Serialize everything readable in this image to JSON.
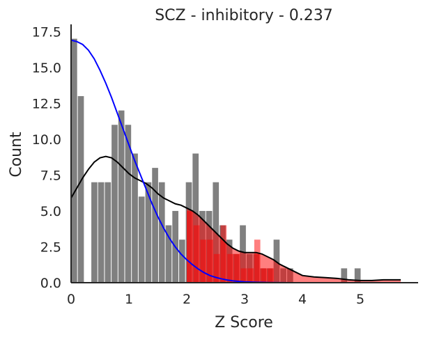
{
  "chart_data": {
    "type": "bar",
    "title": "SCZ - inhibitory - 0.237",
    "xlabel": "Z Score",
    "ylabel": "Count",
    "xlim": [
      0,
      6
    ],
    "ylim": [
      0,
      18
    ],
    "xticks": [
      "0",
      "1",
      "2",
      "3",
      "4",
      "5"
    ],
    "yticks": [
      "0.0",
      "2.5",
      "5.0",
      "7.5",
      "10.0",
      "12.5",
      "15.0",
      "17.5"
    ],
    "bin_start": 0,
    "bin_width": 0.1167,
    "bar_color": "#808080",
    "counts": [
      17,
      13,
      0,
      7,
      7,
      7,
      11,
      12,
      11,
      9,
      6,
      7,
      8,
      7,
      4,
      5,
      3,
      7,
      9,
      5,
      5,
      7,
      4,
      3,
      2,
      4,
      2,
      2,
      1,
      1,
      3,
      1,
      1,
      0,
      0,
      0,
      0,
      0,
      0,
      0,
      1,
      0,
      1,
      0,
      0,
      0,
      0,
      0,
      0,
      0,
      0,
      0,
      0,
      0,
      0,
      0,
      0,
      0,
      0,
      0,
      0,
      0,
      0,
      0,
      0,
      0,
      0,
      0,
      0,
      0,
      0,
      0,
      0,
      0,
      0
    ],
    "highlight": {
      "x_start": 2.0,
      "color": "#ff0000",
      "opacity": 0.5,
      "counts": [
        5,
        4,
        3,
        3,
        2,
        4,
        2,
        2,
        1,
        1,
        3,
        1,
        1
      ]
    },
    "series": [
      {
        "kind": "kde",
        "color": "#000000",
        "x": [
          0,
          0.1,
          0.2,
          0.3,
          0.4,
          0.5,
          0.6,
          0.7,
          0.8,
          0.9,
          1.0,
          1.1,
          1.2,
          1.3,
          1.4,
          1.5,
          1.6,
          1.7,
          1.8,
          1.9,
          2.0,
          2.1,
          2.2,
          2.3,
          2.4,
          2.5,
          2.6,
          2.7,
          2.8,
          2.9,
          3.0,
          3.1,
          3.2,
          3.3,
          3.4,
          3.5,
          3.6,
          3.7,
          3.8,
          3.9,
          4.0,
          4.2,
          4.4,
          4.6,
          4.8,
          5.0,
          5.2,
          5.4,
          5.6,
          5.7
        ],
        "y": [
          5.9,
          6.6,
          7.3,
          7.9,
          8.4,
          8.7,
          8.8,
          8.7,
          8.4,
          8.0,
          7.6,
          7.3,
          7.1,
          6.9,
          6.6,
          6.2,
          5.9,
          5.7,
          5.5,
          5.4,
          5.2,
          5.0,
          4.7,
          4.3,
          3.9,
          3.5,
          3.1,
          2.7,
          2.4,
          2.2,
          2.1,
          2.1,
          2.1,
          2.0,
          1.8,
          1.6,
          1.3,
          1.1,
          0.9,
          0.7,
          0.5,
          0.4,
          0.35,
          0.3,
          0.2,
          0.15,
          0.15,
          0.2,
          0.2,
          0.2
        ]
      },
      {
        "kind": "normal-fit",
        "color": "#0000ff",
        "x": [
          0,
          0.1,
          0.2,
          0.3,
          0.4,
          0.5,
          0.6,
          0.7,
          0.8,
          0.9,
          1.0,
          1.1,
          1.2,
          1.3,
          1.4,
          1.5,
          1.6,
          1.7,
          1.8,
          1.9,
          2.0,
          2.1,
          2.2,
          2.3,
          2.4,
          2.5,
          2.6,
          2.7,
          2.8,
          2.9,
          3.0,
          3.2,
          3.4,
          3.6,
          3.8,
          4.0,
          4.5,
          5.0,
          5.5,
          5.7
        ],
        "y": [
          16.9,
          16.8,
          16.6,
          16.2,
          15.6,
          14.8,
          13.9,
          12.9,
          11.8,
          10.7,
          9.6,
          8.5,
          7.5,
          6.5,
          5.5,
          4.6,
          3.8,
          3.1,
          2.5,
          2.0,
          1.6,
          1.25,
          0.95,
          0.7,
          0.5,
          0.37,
          0.27,
          0.19,
          0.13,
          0.09,
          0.06,
          0.03,
          0.015,
          0.007,
          0.003,
          0.001,
          0,
          0,
          0,
          0
        ]
      }
    ]
  }
}
